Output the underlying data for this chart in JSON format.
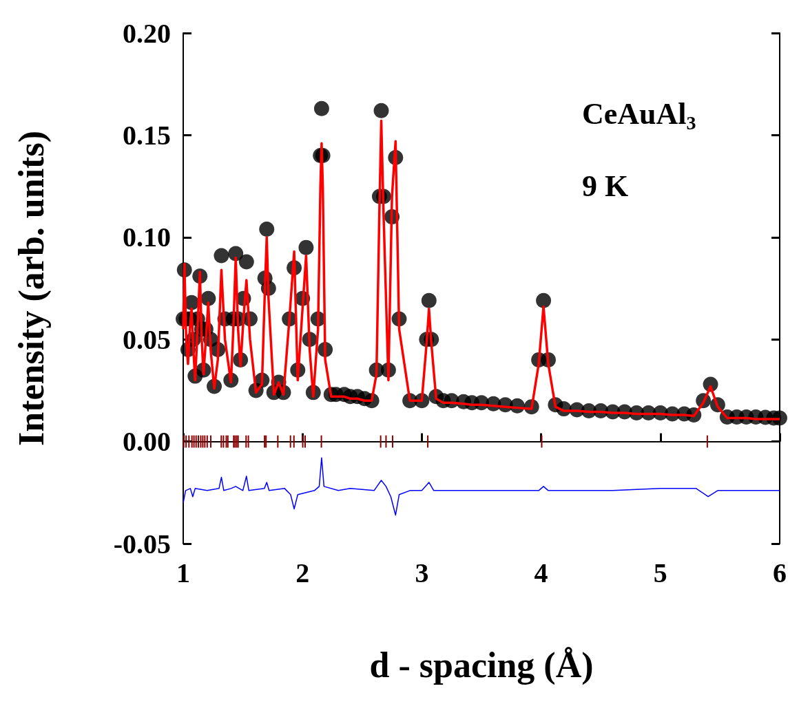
{
  "chart_data": {
    "type": "scatter",
    "xlabel": "d - spacing (Å)",
    "ylabel": "Intensity (arb. units)",
    "annotations": [
      "CeAuAl$_{3}$",
      "9 K"
    ],
    "xlim": [
      1,
      6
    ],
    "xticks": [
      1,
      2,
      3,
      4,
      5,
      6
    ],
    "ylim": [
      -0.05,
      0.2
    ],
    "yticks": [
      {
        "value": -0.05,
        "label": "-0.05"
      },
      {
        "value": 0,
        "label": "0.00"
      },
      {
        "value": 0.05,
        "label": "0.05"
      },
      {
        "value": 0.1,
        "label": "0.10"
      },
      {
        "value": 0.15,
        "label": "0.15"
      },
      {
        "value": 0.2,
        "label": "0.20"
      }
    ],
    "x": [
      1.0,
      1.01,
      1.025,
      1.04,
      1.055,
      1.07,
      1.085,
      1.1,
      1.12,
      1.14,
      1.155,
      1.17,
      1.19,
      1.21,
      1.23,
      1.26,
      1.29,
      1.32,
      1.35,
      1.4,
      1.42,
      1.44,
      1.46,
      1.48,
      1.505,
      1.53,
      1.56,
      1.61,
      1.66,
      1.685,
      1.7,
      1.715,
      1.76,
      1.8,
      1.84,
      1.89,
      1.93,
      1.96,
      2.0,
      2.03,
      2.06,
      2.09,
      2.13,
      2.15,
      2.16,
      2.17,
      2.19,
      2.24,
      2.28,
      2.35,
      2.4,
      2.46,
      2.52,
      2.58,
      2.62,
      2.645,
      2.66,
      2.68,
      2.72,
      2.75,
      2.78,
      2.81,
      2.9,
      3.0,
      3.04,
      3.06,
      3.08,
      3.12,
      3.18,
      3.25,
      3.35,
      3.42,
      3.5,
      3.6,
      3.7,
      3.8,
      3.92,
      3.98,
      4.02,
      4.06,
      4.12,
      4.19,
      4.3,
      4.4,
      4.5,
      4.6,
      4.7,
      4.8,
      4.9,
      5.0,
      5.1,
      5.2,
      5.28,
      5.36,
      5.42,
      5.48,
      5.56,
      5.64,
      5.72,
      5.8,
      5.88,
      5.95,
      6.0
    ],
    "series": [
      {
        "marker": "circle",
        "color": "#000000",
        "values": [
          0.06,
          0.084,
          0.06,
          0.045,
          0.06,
          0.068,
          0.05,
          0.032,
          0.06,
          0.081,
          0.055,
          0.035,
          0.055,
          0.07,
          0.05,
          0.027,
          0.045,
          0.091,
          0.06,
          0.03,
          0.06,
          0.092,
          0.06,
          0.04,
          0.07,
          0.088,
          0.06,
          0.025,
          0.03,
          0.08,
          0.104,
          0.075,
          0.024,
          0.029,
          0.024,
          0.06,
          0.085,
          0.035,
          0.07,
          0.095,
          0.05,
          0.024,
          0.06,
          0.14,
          0.163,
          0.14,
          0.045,
          0.023,
          0.023,
          0.023,
          0.022,
          0.022,
          0.021,
          0.02,
          0.035,
          0.12,
          0.162,
          0.12,
          0.035,
          0.11,
          0.139,
          0.06,
          0.02,
          0.02,
          0.05,
          0.069,
          0.05,
          0.022,
          0.02,
          0.02,
          0.0195,
          0.019,
          0.019,
          0.0185,
          0.018,
          0.0175,
          0.017,
          0.04,
          0.069,
          0.04,
          0.018,
          0.016,
          0.0155,
          0.015,
          0.015,
          0.0145,
          0.0145,
          0.014,
          0.014,
          0.014,
          0.0135,
          0.0135,
          0.013,
          0.02,
          0.028,
          0.018,
          0.012,
          0.012,
          0.012,
          0.012,
          0.0118,
          0.0115,
          0.0115
        ]
      },
      {
        "type": "line",
        "marker": "none",
        "color": "#ff0000",
        "values": [
          0.055,
          0.087,
          0.05,
          0.038,
          0.055,
          0.065,
          0.045,
          0.03,
          0.055,
          0.083,
          0.05,
          0.033,
          0.05,
          0.068,
          0.045,
          0.026,
          0.04,
          0.084,
          0.05,
          0.029,
          0.055,
          0.09,
          0.055,
          0.037,
          0.06,
          0.079,
          0.05,
          0.024,
          0.028,
          0.075,
          0.1,
          0.07,
          0.023,
          0.029,
          0.023,
          0.06,
          0.093,
          0.03,
          0.065,
          0.091,
          0.045,
          0.022,
          0.055,
          0.125,
          0.146,
          0.125,
          0.04,
          0.022,
          0.022,
          0.022,
          0.021,
          0.021,
          0.02,
          0.02,
          0.033,
          0.115,
          0.157,
          0.11,
          0.03,
          0.12,
          0.147,
          0.055,
          0.02,
          0.02,
          0.048,
          0.065,
          0.048,
          0.021,
          0.019,
          0.019,
          0.0185,
          0.018,
          0.018,
          0.0175,
          0.017,
          0.0165,
          0.016,
          0.038,
          0.066,
          0.038,
          0.017,
          0.015,
          0.015,
          0.0145,
          0.0145,
          0.014,
          0.014,
          0.0135,
          0.0135,
          0.0135,
          0.013,
          0.013,
          0.0125,
          0.019,
          0.027,
          0.017,
          0.0115,
          0.0115,
          0.0115,
          0.011,
          0.011,
          0.011,
          0.011
        ]
      },
      {
        "type": "bar",
        "color": "#8b0000",
        "x": [
          1.004,
          1.024,
          1.048,
          1.073,
          1.09,
          1.108,
          1.127,
          1.147,
          1.164,
          1.181,
          1.201,
          1.231,
          1.319,
          1.337,
          1.361,
          1.374,
          1.423,
          1.435,
          1.448,
          1.46,
          1.527,
          1.546,
          1.682,
          1.694,
          1.793,
          1.899,
          1.928,
          2.002,
          2.022,
          2.158,
          2.655,
          2.7,
          2.755,
          3.05,
          4.005,
          5.393
        ],
        "base": [
          -0.003,
          -0.003,
          -0.003,
          -0.003,
          -0.003,
          -0.003,
          -0.003,
          -0.003,
          -0.003,
          -0.003,
          -0.003,
          -0.003,
          -0.003,
          -0.003,
          -0.003,
          -0.003,
          -0.003,
          -0.003,
          -0.003,
          -0.003,
          -0.003,
          -0.003,
          -0.003,
          -0.003,
          -0.003,
          -0.003,
          -0.003,
          -0.003,
          -0.003,
          -0.003,
          -0.003,
          -0.003,
          -0.003,
          -0.003,
          -0.003,
          -0.003
        ],
        "values": [
          0.006,
          0.006,
          0.006,
          0.006,
          0.006,
          0.006,
          0.006,
          0.006,
          0.006,
          0.006,
          0.006,
          0.006,
          0.006,
          0.006,
          0.006,
          0.006,
          0.006,
          0.006,
          0.006,
          0.006,
          0.006,
          0.006,
          0.006,
          0.006,
          0.006,
          0.006,
          0.006,
          0.006,
          0.006,
          0.006,
          0.006,
          0.006,
          0.006,
          0.006,
          0.006,
          0.006
        ]
      },
      {
        "type": "line",
        "marker": "none",
        "color": "#0000ff",
        "x": [
          1.0,
          1.02,
          1.06,
          1.08,
          1.1,
          1.2,
          1.3,
          1.32,
          1.34,
          1.4,
          1.44,
          1.5,
          1.53,
          1.55,
          1.68,
          1.7,
          1.72,
          1.85,
          1.9,
          1.93,
          1.96,
          2.1,
          2.14,
          2.16,
          2.18,
          2.3,
          2.4,
          2.6,
          2.66,
          2.7,
          2.74,
          2.78,
          2.81,
          2.9,
          3.0,
          3.06,
          3.1,
          3.5,
          3.98,
          4.02,
          4.06,
          4.6,
          5.0,
          5.3,
          5.4,
          5.48,
          6.0
        ],
        "values": [
          -0.03,
          -0.024,
          -0.023,
          -0.027,
          -0.023,
          -0.024,
          -0.023,
          -0.0175,
          -0.024,
          -0.023,
          -0.022,
          -0.024,
          -0.017,
          -0.024,
          -0.023,
          -0.02,
          -0.024,
          -0.023,
          -0.026,
          -0.033,
          -0.026,
          -0.024,
          -0.022,
          -0.008,
          -0.022,
          -0.024,
          -0.023,
          -0.024,
          -0.019,
          -0.022,
          -0.027,
          -0.036,
          -0.026,
          -0.024,
          -0.024,
          -0.02,
          -0.024,
          -0.024,
          -0.024,
          -0.022,
          -0.024,
          -0.024,
          -0.023,
          -0.023,
          -0.027,
          -0.024,
          -0.024
        ]
      }
    ]
  }
}
